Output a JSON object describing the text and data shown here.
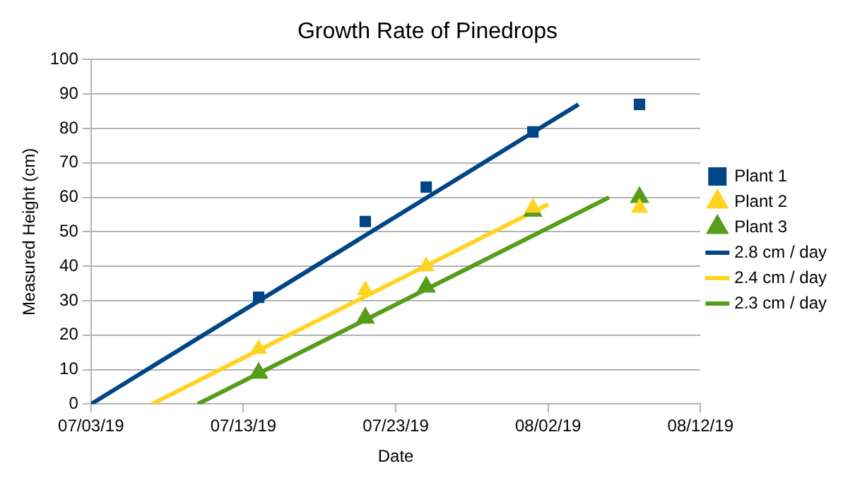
{
  "chart_data": {
    "type": "scatter",
    "title": "Growth Rate of Pinedrops",
    "xlabel": "Date",
    "ylabel": "Measured Height (cm)",
    "xlim": [
      "--07-03",
      "--08-12"
    ],
    "xticks": [
      {
        "value": "--07-03",
        "label": "07/03/19"
      },
      {
        "value": "--07-13",
        "label": "07/13/19"
      },
      {
        "value": "--07-23",
        "label": "07/23/19"
      },
      {
        "value": "--08-02",
        "label": "08/02/19"
      },
      {
        "value": "--08-12",
        "label": "08/12/19"
      }
    ],
    "ylim": [
      0,
      100
    ],
    "yticks": [
      0,
      10,
      20,
      30,
      40,
      50,
      60,
      70,
      80,
      90,
      100
    ],
    "grid": "y",
    "legend": "right",
    "series": [
      {
        "name": "Plant 1",
        "type": "scatter",
        "marker": "square",
        "color": "#004586",
        "x": [
          "--07-14",
          "--07-21",
          "--07-25",
          "--08-01",
          "--08-08"
        ],
        "values": [
          31,
          53,
          63,
          79,
          87
        ]
      },
      {
        "name": "Plant 2",
        "type": "scatter",
        "marker": "triangle",
        "color": "#ffd320",
        "x": [
          "--07-14",
          "--07-21",
          "--07-25",
          "--08-01",
          "--08-08"
        ],
        "values": [
          16,
          33,
          40,
          57,
          57
        ]
      },
      {
        "name": "Plant 3",
        "type": "scatter",
        "marker": "triangle",
        "color": "#579d1c",
        "x": [
          "--07-14",
          "--07-21",
          "--07-25",
          "--08-01",
          "--08-08"
        ],
        "values": [
          9,
          25,
          34,
          56,
          60
        ]
      },
      {
        "name": "2.8 cm / day",
        "type": "line",
        "marker": "none",
        "color": "#004586",
        "x": [
          "--07-03",
          "--08-04"
        ],
        "values": [
          0,
          87
        ]
      },
      {
        "name": "2.4 cm / day",
        "type": "line",
        "marker": "none",
        "color": "#ffd320",
        "x": [
          "--07-07",
          "--08-02"
        ],
        "values": [
          0,
          58
        ]
      },
      {
        "name": "2.3 cm / day",
        "type": "line",
        "marker": "none",
        "color": "#579d1c",
        "x": [
          "--07-10",
          "--08-06"
        ],
        "values": [
          0,
          60
        ]
      }
    ]
  }
}
